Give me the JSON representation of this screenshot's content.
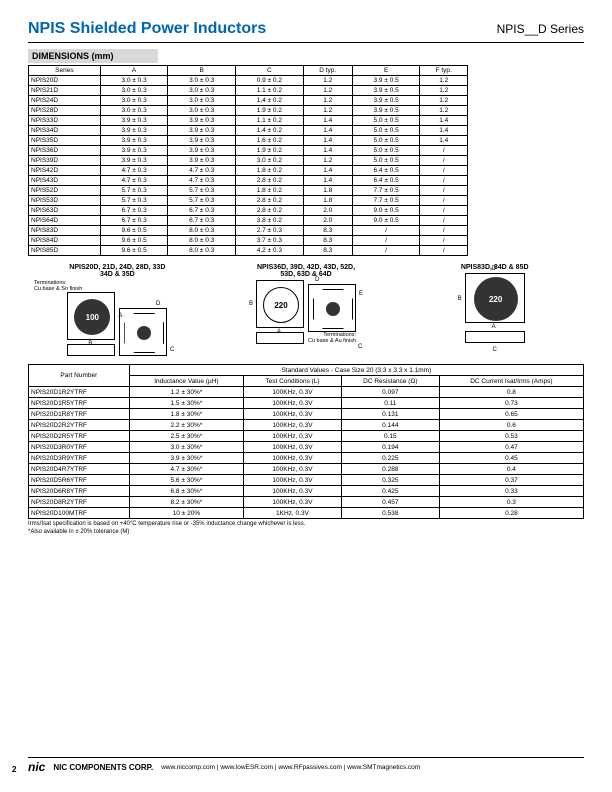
{
  "header": {
    "title": "NPIS Shielded Power Inductors",
    "series": "NPIS__D Series"
  },
  "dimensions_heading": "DIMENSIONS (mm)",
  "dim_headers": [
    "Series",
    "A",
    "B",
    "C",
    "D typ.",
    "E",
    "F typ."
  ],
  "dim_rows": [
    [
      "NPIS20D",
      "3.0 ± 0.3",
      "3.0 ± 0.3",
      "0.9 ± 0.2",
      "1.2",
      "3.9 ± 0.5",
      "1.2"
    ],
    [
      "NPIS21D",
      "3.0 ± 0.3",
      "3.0 ± 0.3",
      "1.1 ± 0.2",
      "1.2",
      "3.9 ± 0.5",
      "1.2"
    ],
    [
      "NPIS24D",
      "3.0 ± 0.3",
      "3.0 ± 0.3",
      "1.4 ± 0.2",
      "1.2",
      "3.9 ± 0.5",
      "1.2"
    ],
    [
      "NPIS28D",
      "3.0 ± 0.3",
      "3.0 ± 0.3",
      "1.9 ± 0.2",
      "1.2",
      "3.9 ± 0.5",
      "1.2"
    ],
    [
      "NPIS33D",
      "3.9 ± 0.3",
      "3.9 ± 0.3",
      "1.1 ± 0.2",
      "1.4",
      "5.0 ± 0.5",
      "1.4"
    ],
    [
      "NPIS34D",
      "3.9 ± 0.3",
      "3.9 ± 0.3",
      "1.4 ± 0.2",
      "1.4",
      "5.0 ± 0.5",
      "1.4"
    ],
    [
      "NPIS35D",
      "3.9 ± 0.3",
      "3.9 ± 0.3",
      "1.6 ± 0.2",
      "1.4",
      "5.0 ± 0.5",
      "1.4"
    ],
    [
      "NPIS36D",
      "3.9 ± 0.3",
      "3.9 ± 0.3",
      "1.9 ± 0.2",
      "1.4",
      "5.0 ± 0.5",
      "/"
    ],
    [
      "NPIS39D",
      "3.9 ± 0.3",
      "3.9 ± 0.3",
      "3.0 ± 0.2",
      "1.2",
      "5.0 ± 0.5",
      "/"
    ],
    [
      "NPIS42D",
      "4.7 ± 0.3",
      "4.7 ± 0.3",
      "1.8 ± 0.2",
      "1.4",
      "6.4 ± 0.5",
      "/"
    ],
    [
      "NPIS43D",
      "4.7 ± 0.3",
      "4.7 ± 0.3",
      "2.8 ± 0.2",
      "1.4",
      "6.4 ± 0.5",
      "/"
    ],
    [
      "NPIS52D",
      "5.7 ± 0.3",
      "5.7 ± 0.3",
      "1.8 ± 0.2",
      "1.8",
      "7.7 ± 0.5",
      "/"
    ],
    [
      "NPIS53D",
      "5.7 ± 0.3",
      "5.7 ± 0.3",
      "2.8 ± 0.2",
      "1.8",
      "7.7 ± 0.5",
      "/"
    ],
    [
      "NPIS63D",
      "6.7 ± 0.3",
      "6.7 ± 0.3",
      "2.8 ± 0.2",
      "2.0",
      "9.0 ± 0.5",
      "/"
    ],
    [
      "NPIS64D",
      "6.7 ± 0.3",
      "6.7 ± 0.3",
      "3.8 ± 0.2",
      "2.0",
      "9.0 ± 0.5",
      "/"
    ],
    [
      "NPIS83D",
      "9.6 ± 0.5",
      "8.0 ± 0.3",
      "2.7 ± 0.3",
      "8.3",
      "/",
      "/"
    ],
    [
      "NPIS84D",
      "9.6 ± 0.5",
      "8.0 ± 0.3",
      "3.7 ± 0.3",
      "8.3",
      "/",
      "/"
    ],
    [
      "NPIS85D",
      "9.6 ± 0.5",
      "8.0 ± 0.3",
      "4.2 ± 0.3",
      "8.3",
      "/",
      "/"
    ]
  ],
  "diag_labels": {
    "g1": "NPIS20D, 21D, 24D, 28D, 33D\n34D & 35D",
    "g2": "NPIS36D, 39D, 42D, 43D, 52D,\n53D, 63D & 64D",
    "g3": "NPIS83D, 84D & 85D"
  },
  "term1": "Terminations:\nCu base & Sn finish",
  "term2": "Terminations:\nCu base & Au finish",
  "marking1": "100",
  "marking2": "220",
  "marking3": "220",
  "std_title": "Standard Values - Case Size 20 (3.3 x 3.3 x 1.1mm)",
  "std_headers": [
    "Part Number",
    "Inductance Value (µH)",
    "Test Conditions (L)",
    "DC Resistance (Ω)",
    "DC Current Isat/Irms (Amps)"
  ],
  "std_rows": [
    [
      "NPIS20D1R2YTRF",
      "1.2 ± 30%*",
      "100KHz, 0.3V",
      "0.097",
      "0.8"
    ],
    [
      "NPIS20D1R5YTRF",
      "1.5 ± 30%*",
      "100KHz, 0.3V",
      "0.11",
      "0.73"
    ],
    [
      "NPIS20D1R8YTRF",
      "1.8 ± 30%*",
      "100KHz, 0.3V",
      "0.131",
      "0.65"
    ],
    [
      "NPIS20D2R2YTRF",
      "2.2 ± 30%*",
      "100KHz, 0.3V",
      "0.144",
      "0.6"
    ],
    [
      "NPIS20D2R5YTRF",
      "2.5 ± 30%*",
      "100KHz, 0.3V",
      "0.15",
      "0.53"
    ],
    [
      "NPIS20D3R0YTRF",
      "3.0 ± 30%*",
      "100KHz, 0.3V",
      "0.194",
      "0.47"
    ],
    [
      "NPIS20D3R9YTRF",
      "3.9 ± 30%*",
      "100KHz, 0.3V",
      "0.225",
      "0.45"
    ],
    [
      "NPIS20D4R7YTRF",
      "4.7 ± 30%*",
      "100KHz, 0.3V",
      "0.288",
      "0.4"
    ],
    [
      "NPIS20D5R6YTRF",
      "5.6 ± 30%*",
      "100KHz, 0.3V",
      "0.325",
      "0.37"
    ],
    [
      "NPIS20D6R8YTRF",
      "6.8 ± 30%*",
      "100KHz, 0.3V",
      "0.425",
      "0.33"
    ],
    [
      "NPIS20D8R2YTRF",
      "8.2 ± 30%*",
      "100KHz, 0.3V",
      "0.457",
      "0.3"
    ],
    [
      "NPIS20D100MTRF",
      "10 ± 20%",
      "1KHz, 0.3V",
      "0.538",
      "0.28"
    ]
  ],
  "footnote1": "Irms/Isat specification is based on +40°C temperature rise or -35% inductance change whichever is less.",
  "footnote2": "*Also available in ± 20% tolerance (M)",
  "footer": {
    "logo": "nic",
    "company": "NIC COMPONENTS CORP.",
    "links": "www.niccomp.com   |   www.lowESR.com   |   www.RFpassives.com   |   www.SMTmagnetics.com"
  },
  "pagenum": "2"
}
